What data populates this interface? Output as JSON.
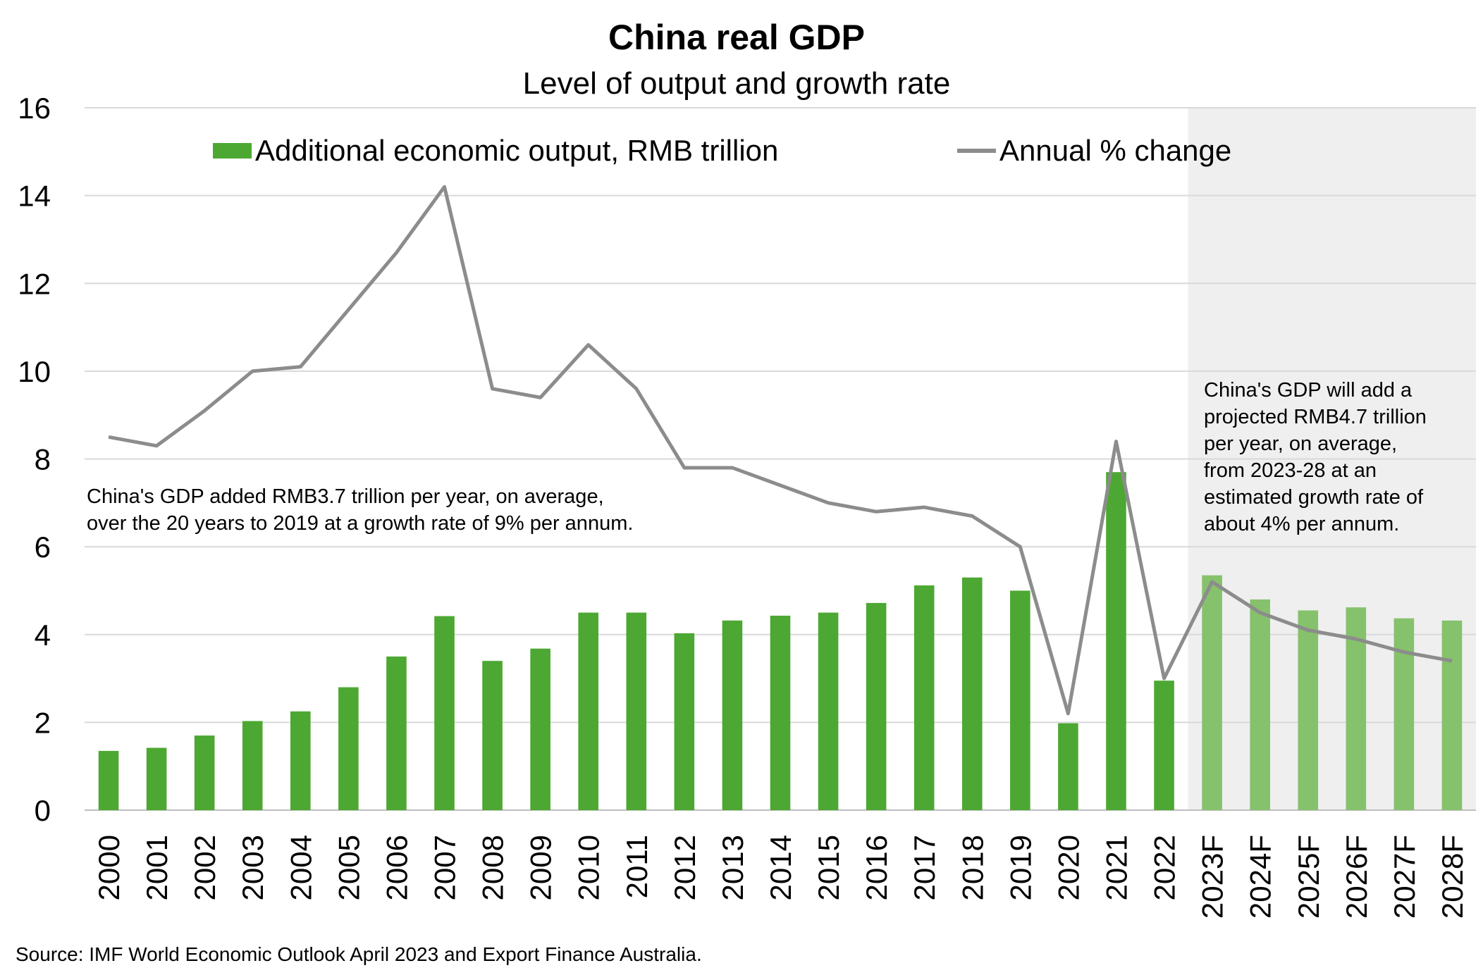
{
  "chart_data": {
    "type": "bar",
    "title": "China real GDP",
    "subtitle": "Level of output and growth rate",
    "categories": [
      "2000",
      "2001",
      "2002",
      "2003",
      "2004",
      "2005",
      "2006",
      "2007",
      "2008",
      "2009",
      "2010",
      "2011",
      "2012",
      "2013",
      "2014",
      "2015",
      "2016",
      "2017",
      "2018",
      "2019",
      "2020",
      "2021",
      "2022",
      "2023F",
      "2024F",
      "2025F",
      "2026F",
      "2027F",
      "2028F"
    ],
    "series": [
      {
        "name": "Additional economic output, RMB trillion",
        "kind": "bar",
        "color": "#4ca832",
        "forecast_color": "#86c16c",
        "values": [
          1.35,
          1.42,
          1.7,
          2.03,
          2.25,
          2.8,
          3.5,
          4.42,
          3.4,
          3.68,
          4.5,
          4.5,
          4.03,
          4.32,
          4.43,
          4.5,
          4.72,
          5.12,
          5.3,
          5.0,
          1.98,
          7.7,
          2.95,
          5.35,
          4.8,
          4.55,
          4.62,
          4.37,
          4.32
        ]
      },
      {
        "name": "Annual % change",
        "kind": "line",
        "color": "#8c8c8c",
        "values": [
          8.5,
          8.3,
          9.1,
          10.0,
          10.1,
          11.4,
          12.7,
          14.2,
          9.6,
          9.4,
          10.6,
          9.6,
          7.8,
          7.8,
          7.4,
          7.0,
          6.8,
          6.9,
          6.7,
          6.0,
          2.2,
          8.4,
          3.0,
          5.2,
          4.5,
          4.1,
          3.9,
          3.6,
          3.4
        ]
      }
    ],
    "ylim": [
      0,
      16
    ],
    "yticks": [
      "0",
      "2",
      "4",
      "6",
      "8",
      "10",
      "12",
      "14",
      "16"
    ],
    "grid": true,
    "forecast_start_index": 23,
    "forecast_shade_color": "#efefef",
    "legend": {
      "placement": "top",
      "items": [
        "Additional economic output, RMB trillion",
        "Annual % change"
      ]
    },
    "annotations": {
      "left": [
        "China's  GDP added RMB3.7 trillion per year, on average,",
        "over the 20 years to 2019 at a growth rate of 9% per annum."
      ],
      "right": [
        "China's  GDP will add a",
        "projected RMB4.7 trillion",
        "per year, on average,",
        "from 2023-28 at an",
        "estimated growth rate of",
        "about 4% per annum."
      ]
    },
    "source": "Source:  IMF World Economic  Outlook April 2023 and Export Finance  Australia."
  }
}
